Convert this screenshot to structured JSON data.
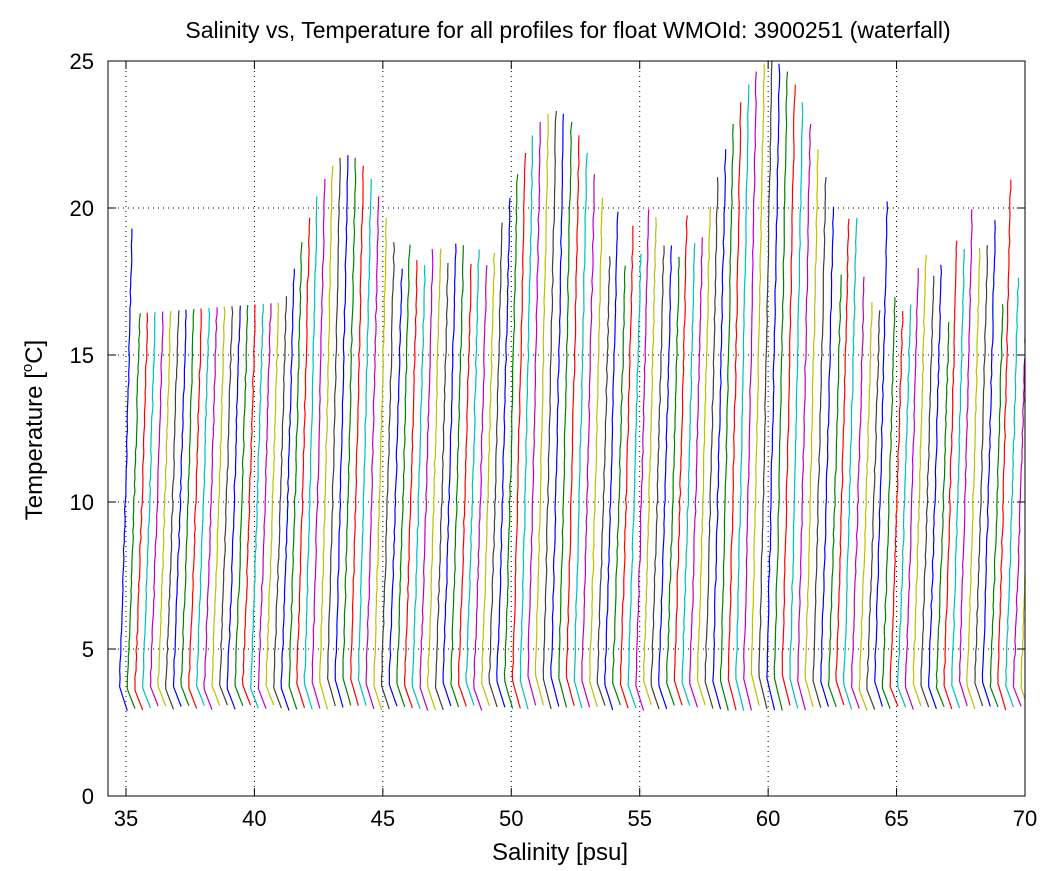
{
  "chart_data": {
    "type": "line",
    "title": "Salinity vs, Temperature for all profiles for float WMOId: 3900251 (waterfall)",
    "xlabel": "Salinity [psu]",
    "ylabel_main": "Temperature [",
    "ylabel_sup": "o",
    "ylabel_end": "C]",
    "xlim": [
      34.3,
      70
    ],
    "ylim": [
      0,
      25
    ],
    "xticks": [
      35,
      40,
      45,
      50,
      55,
      60,
      65,
      70
    ],
    "yticks": [
      0,
      5,
      10,
      15,
      20,
      25
    ],
    "grid": true,
    "profile_count": 118,
    "offset_per_profile_psu": 0.3,
    "surface_temperature_range": [
      16.2,
      25
    ],
    "bottom_temperature_approx": 2.9,
    "colors": [
      "#0000ff",
      "#008000",
      "#ff0000",
      "#00bfbf",
      "#bf00bf",
      "#bfbf00",
      "#404040"
    ]
  }
}
